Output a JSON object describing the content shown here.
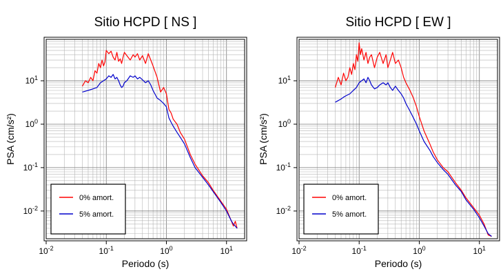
{
  "chart_data": [
    {
      "type": "line",
      "title": "Sitio HCPD [ NS ]",
      "xlabel": "Periodo (s)",
      "ylabel": "PSA (cm/s²)",
      "xscale": "log",
      "yscale": "log",
      "xlim": [
        0.01,
        20
      ],
      "ylim": [
        0.0023,
        90
      ],
      "xticks": [
        {
          "value": 0.01,
          "base": "10",
          "exp": "-2"
        },
        {
          "value": 0.1,
          "base": "10",
          "exp": "-1"
        },
        {
          "value": 1,
          "base": "10",
          "exp": "0"
        },
        {
          "value": 10,
          "base": "10",
          "exp": "1"
        }
      ],
      "yticks": [
        {
          "value": 0.01,
          "base": "10",
          "exp": "-2"
        },
        {
          "value": 0.1,
          "base": "10",
          "exp": "-1"
        },
        {
          "value": 1,
          "base": "10",
          "exp": "0"
        },
        {
          "value": 10,
          "base": "10",
          "exp": "1"
        }
      ],
      "grid": true,
      "legend_position": "bottom-left",
      "series": [
        {
          "name": "0% amort.",
          "color": "#ff0000",
          "x": [
            0.04,
            0.045,
            0.05,
            0.055,
            0.06,
            0.065,
            0.07,
            0.075,
            0.08,
            0.085,
            0.09,
            0.095,
            0.1,
            0.11,
            0.12,
            0.13,
            0.14,
            0.15,
            0.16,
            0.17,
            0.18,
            0.19,
            0.2,
            0.22,
            0.25,
            0.28,
            0.3,
            0.33,
            0.36,
            0.4,
            0.45,
            0.5,
            0.55,
            0.6,
            0.7,
            0.8,
            0.9,
            1.0,
            1.1,
            1.2,
            1.3,
            1.5,
            1.7,
            2.0,
            2.5,
            3.0,
            4.0,
            5.0,
            6.0,
            8.0,
            10.0,
            12.0,
            13.0,
            14.0,
            15.0
          ],
          "y": [
            7.5,
            10.0,
            9.0,
            12.0,
            10.0,
            17.0,
            15.0,
            25.0,
            20.0,
            30.0,
            22.0,
            27.0,
            50.0,
            42.0,
            48.0,
            35.0,
            30.0,
            45.0,
            28.0,
            32.0,
            25.0,
            35.0,
            45.0,
            38.0,
            30.0,
            40.0,
            35.0,
            42.0,
            30.0,
            38.0,
            25.0,
            42.0,
            30.0,
            22.0,
            12.0,
            5.5,
            7.0,
            5.0,
            2.2,
            1.8,
            1.3,
            1.0,
            0.65,
            0.45,
            0.2,
            0.12,
            0.065,
            0.045,
            0.03,
            0.017,
            0.011,
            0.006,
            0.0045,
            0.0058,
            0.004
          ]
        },
        {
          "name": "5% amort.",
          "color": "#0000cc",
          "x": [
            0.04,
            0.05,
            0.06,
            0.07,
            0.08,
            0.09,
            0.1,
            0.11,
            0.12,
            0.13,
            0.14,
            0.15,
            0.16,
            0.17,
            0.18,
            0.19,
            0.2,
            0.22,
            0.25,
            0.28,
            0.3,
            0.33,
            0.36,
            0.4,
            0.45,
            0.5,
            0.55,
            0.6,
            0.7,
            0.8,
            0.9,
            1.0,
            1.1,
            1.2,
            1.3,
            1.5,
            1.7,
            2.0,
            2.5,
            3.0,
            4.0,
            5.0,
            6.0,
            8.0,
            10.0,
            12.0,
            13.0,
            14.0,
            15.0
          ],
          "y": [
            5.5,
            6.0,
            6.5,
            7.0,
            9.0,
            10.0,
            11.0,
            13.0,
            12.0,
            14.0,
            11.0,
            12.0,
            10.0,
            8.0,
            7.0,
            7.5,
            9.0,
            10.0,
            13.0,
            12.0,
            13.0,
            11.0,
            12.0,
            10.5,
            9.0,
            10.0,
            8.0,
            6.0,
            4.0,
            3.5,
            3.0,
            2.5,
            1.4,
            1.1,
            0.9,
            0.65,
            0.5,
            0.35,
            0.17,
            0.1,
            0.06,
            0.04,
            0.028,
            0.016,
            0.01,
            0.006,
            0.005,
            0.0045,
            0.004
          ]
        }
      ]
    },
    {
      "type": "line",
      "title": "Sitio HCPD [ EW ]",
      "xlabel": "Periodo (s)",
      "ylabel": "PSA (cm/s²)",
      "xscale": "log",
      "yscale": "log",
      "xlim": [
        0.01,
        20
      ],
      "ylim": [
        0.0023,
        90
      ],
      "xticks": [
        {
          "value": 0.01,
          "base": "10",
          "exp": "-2"
        },
        {
          "value": 0.1,
          "base": "10",
          "exp": "-1"
        },
        {
          "value": 1,
          "base": "10",
          "exp": "0"
        },
        {
          "value": 10,
          "base": "10",
          "exp": "1"
        }
      ],
      "yticks": [
        {
          "value": 0.01,
          "base": "10",
          "exp": "-2"
        },
        {
          "value": 0.1,
          "base": "10",
          "exp": "-1"
        },
        {
          "value": 1,
          "base": "10",
          "exp": "0"
        },
        {
          "value": 10,
          "base": "10",
          "exp": "1"
        }
      ],
      "grid": true,
      "legend_position": "bottom-left",
      "series": [
        {
          "name": "0% amort.",
          "color": "#ff0000",
          "x": [
            0.04,
            0.045,
            0.05,
            0.055,
            0.06,
            0.065,
            0.07,
            0.075,
            0.08,
            0.085,
            0.09,
            0.095,
            0.1,
            0.105,
            0.11,
            0.12,
            0.13,
            0.14,
            0.15,
            0.16,
            0.18,
            0.2,
            0.22,
            0.25,
            0.28,
            0.3,
            0.33,
            0.36,
            0.4,
            0.45,
            0.5,
            0.55,
            0.6,
            0.7,
            0.8,
            0.9,
            1.0,
            1.2,
            1.5,
            1.7,
            2.0,
            2.5,
            3.0,
            4.0,
            5.0,
            6.0,
            8.0,
            10.0,
            12.0,
            14.0,
            16.0
          ],
          "y": [
            7.0,
            12.0,
            8.0,
            15.0,
            10.0,
            12.0,
            20.0,
            14.0,
            25.0,
            18.0,
            40.0,
            28.0,
            75.0,
            40.0,
            55.0,
            30.0,
            45.0,
            25.0,
            35.0,
            40.0,
            20.0,
            35.0,
            45.0,
            25.0,
            40.0,
            20.0,
            30.0,
            45.0,
            25.0,
            30.0,
            20.0,
            12.0,
            9.0,
            6.0,
            4.0,
            2.5,
            1.5,
            0.7,
            0.35,
            0.23,
            0.15,
            0.1,
            0.08,
            0.045,
            0.03,
            0.02,
            0.012,
            0.008,
            0.005,
            0.0028,
            0.0026
          ]
        },
        {
          "name": "5% amort.",
          "color": "#0000cc",
          "x": [
            0.04,
            0.045,
            0.05,
            0.055,
            0.06,
            0.07,
            0.08,
            0.09,
            0.1,
            0.11,
            0.12,
            0.13,
            0.14,
            0.15,
            0.16,
            0.18,
            0.2,
            0.22,
            0.25,
            0.28,
            0.3,
            0.33,
            0.36,
            0.4,
            0.45,
            0.5,
            0.55,
            0.6,
            0.7,
            0.8,
            0.9,
            1.0,
            1.2,
            1.5,
            1.7,
            2.0,
            2.5,
            3.0,
            4.0,
            5.0,
            6.0,
            8.0,
            10.0,
            12.0,
            14.0,
            16.0
          ],
          "y": [
            3.2,
            3.5,
            3.8,
            4.2,
            4.5,
            5.0,
            6.0,
            7.0,
            9.0,
            10.0,
            11.0,
            9.0,
            12.0,
            10.0,
            8.0,
            6.5,
            7.0,
            8.0,
            9.0,
            8.0,
            9.0,
            7.0,
            6.0,
            7.5,
            6.0,
            5.0,
            4.0,
            3.0,
            2.0,
            1.4,
            1.0,
            0.7,
            0.4,
            0.25,
            0.18,
            0.13,
            0.09,
            0.07,
            0.04,
            0.028,
            0.018,
            0.011,
            0.007,
            0.0045,
            0.003,
            0.0026
          ]
        }
      ]
    }
  ]
}
